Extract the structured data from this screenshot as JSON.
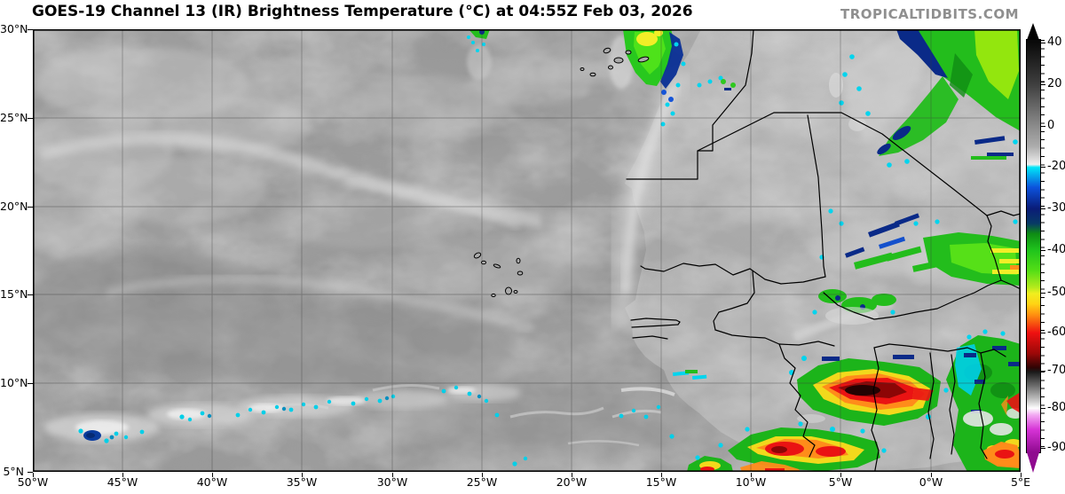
{
  "header": {
    "title": "GOES-19 Channel 13 (IR) Brightness Temperature (°C) at 04:55Z Feb 03, 2026",
    "watermark": "TROPICALTIDBITS.COM"
  },
  "axes": {
    "lat_labels": [
      "30°N",
      "25°N",
      "20°N",
      "15°N",
      "10°N",
      "5°N"
    ],
    "lon_labels": [
      "50°W",
      "45°W",
      "40°W",
      "35°W",
      "30°W",
      "25°W",
      "20°W",
      "15°W",
      "10°W",
      "5°W",
      "0°W",
      "5°E"
    ]
  },
  "colorbar": {
    "tick_labels": [
      "40",
      "20",
      "0",
      "-20",
      "-30",
      "-40",
      "-50",
      "-60",
      "-70",
      "-80",
      "-90"
    ],
    "arrow_top_color": "#000000",
    "arrow_bottom_color": "#8f0a8f",
    "gradient_stops": [
      [
        0.6,
        "#0a0a0a"
      ],
      [
        10.8,
        "#3f3f3f"
      ],
      [
        20.9,
        "#8b8b8b"
      ],
      [
        25.8,
        "#acacac"
      ],
      [
        30.2,
        "#efefef"
      ],
      [
        30.9,
        "#00e6f8"
      ],
      [
        35.8,
        "#0c52dc"
      ],
      [
        40.9,
        "#0a1c78"
      ],
      [
        44.5,
        "#083a66"
      ],
      [
        47.0,
        "#0e8c14"
      ],
      [
        51.0,
        "#1fc41c"
      ],
      [
        56.0,
        "#55de16"
      ],
      [
        60.0,
        "#b4ea1c"
      ],
      [
        61.5,
        "#f0ee1f"
      ],
      [
        64.0,
        "#ffd414"
      ],
      [
        66.5,
        "#ff9410"
      ],
      [
        71.0,
        "#ef1111"
      ],
      [
        76.0,
        "#9c0808"
      ],
      [
        79.5,
        "#2e0404"
      ],
      [
        80.5,
        "#1a1a1a"
      ],
      [
        84.0,
        "#6f6f6f"
      ],
      [
        87.5,
        "#c9c9c9"
      ],
      [
        89.3,
        "#fefefe"
      ],
      [
        91.0,
        "#f2a6f2"
      ],
      [
        94.5,
        "#d633d6"
      ],
      [
        100.0,
        "#8f0a8f"
      ]
    ]
  },
  "palette": {
    "ocean_gray": "#939393",
    "land_gray": "#acacac",
    "sahara_gray": "#b9b9b9",
    "cloud_white": "#e8e8e8",
    "cold_cyan": "#00d4ee",
    "cold_navy": "#0a2a88",
    "cold_green": "#23bd1c",
    "cold_yellow": "#f2d91c",
    "cold_orange": "#ff8c1a",
    "cold_red": "#ea1313",
    "cold_darkred": "#8c0606",
    "cold_core_black": "#230303"
  }
}
